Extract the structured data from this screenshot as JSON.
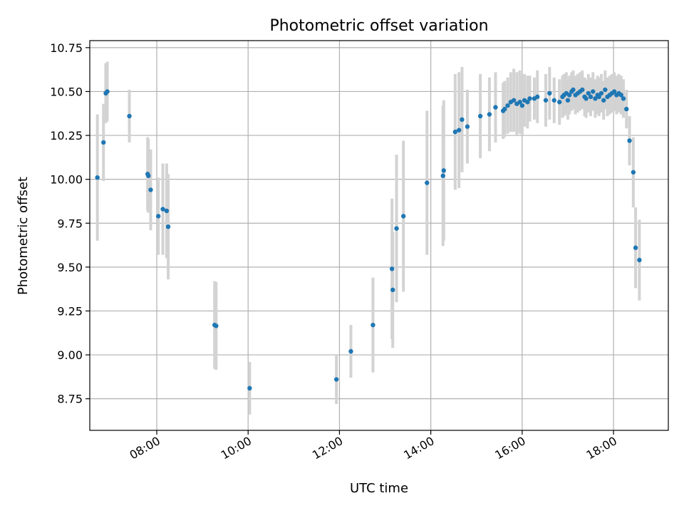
{
  "chart_data": {
    "type": "scatter",
    "title": "Photometric offset variation",
    "xlabel": "UTC time",
    "ylabel": "Photometric offset",
    "x_tick_labels": [
      "08:00",
      "10:00",
      "12:00",
      "14:00",
      "16:00",
      "18:00"
    ],
    "y_tick_labels": [
      "8.75",
      "9.00",
      "9.25",
      "9.50",
      "9.75",
      "10.00",
      "10.25",
      "10.50",
      "10.75"
    ],
    "xlim": [
      "06:32",
      "19:12"
    ],
    "ylim": [
      8.57,
      10.79
    ],
    "grid": true,
    "legend": "none",
    "errorbar_color": "#d3d3d3",
    "marker_color": "#1f77b4",
    "series": [
      {
        "x": [
          "06:42",
          "06:50",
          "06:53",
          "06:55",
          "07:24",
          "07:48",
          "07:49",
          "07:52",
          "08:02",
          "08:08",
          "08:13",
          "08:15",
          "09:16",
          "09:18",
          "10:02",
          "11:56",
          "12:15",
          "12:44",
          "13:09",
          "13:10",
          "13:15",
          "13:24",
          "13:55",
          "14:16",
          "14:17",
          "14:32",
          "14:37",
          "14:41",
          "14:48",
          "15:05",
          "15:17",
          "15:25",
          "15:35",
          "15:37",
          "15:41",
          "15:45",
          "15:49",
          "15:53",
          "15:57",
          "16:00",
          "16:03",
          "16:07",
          "16:10",
          "16:16",
          "16:20",
          "16:31",
          "16:36",
          "16:42",
          "16:49",
          "16:53",
          "16:55",
          "16:58",
          "17:00",
          "17:02",
          "17:05",
          "17:07",
          "17:10",
          "17:13",
          "17:16",
          "17:19",
          "17:22",
          "17:24",
          "17:27",
          "17:30",
          "17:33",
          "17:36",
          "17:39",
          "17:41",
          "17:44",
          "17:47",
          "17:49",
          "17:52",
          "17:55",
          "17:58",
          "18:01",
          "18:04",
          "18:07",
          "18:10",
          "18:13",
          "18:17",
          "18:21",
          "18:26",
          "18:29",
          "18:34"
        ],
        "y": [
          10.01,
          10.21,
          10.49,
          10.5,
          10.36,
          10.03,
          10.02,
          9.94,
          9.79,
          9.83,
          9.82,
          9.73,
          9.17,
          9.165,
          8.81,
          8.86,
          9.02,
          9.17,
          9.49,
          9.37,
          9.72,
          9.79,
          9.98,
          10.02,
          10.05,
          10.27,
          10.28,
          10.34,
          10.3,
          10.36,
          10.37,
          10.41,
          10.39,
          10.4,
          10.42,
          10.44,
          10.45,
          10.43,
          10.44,
          10.42,
          10.45,
          10.44,
          10.46,
          10.46,
          10.47,
          10.45,
          10.49,
          10.45,
          10.44,
          10.47,
          10.48,
          10.49,
          10.45,
          10.48,
          10.5,
          10.51,
          10.48,
          10.49,
          10.5,
          10.51,
          10.47,
          10.46,
          10.49,
          10.47,
          10.5,
          10.46,
          10.48,
          10.47,
          10.49,
          10.45,
          10.51,
          10.47,
          10.48,
          10.49,
          10.5,
          10.48,
          10.49,
          10.48,
          10.46,
          10.4,
          10.22,
          10.04,
          9.61,
          9.54
        ],
        "yerr": [
          0.36,
          0.22,
          0.17,
          0.17,
          0.15,
          0.21,
          0.21,
          0.23,
          0.22,
          0.26,
          0.27,
          0.3,
          0.25,
          0.25,
          0.15,
          0.14,
          0.15,
          0.27,
          0.4,
          0.33,
          0.42,
          0.43,
          0.41,
          0.4,
          0.4,
          0.33,
          0.33,
          0.3,
          0.21,
          0.24,
          0.21,
          0.2,
          0.16,
          0.16,
          0.16,
          0.17,
          0.18,
          0.18,
          0.18,
          0.17,
          0.15,
          0.15,
          0.13,
          0.12,
          0.15,
          0.15,
          0.15,
          0.13,
          0.13,
          0.12,
          0.12,
          0.12,
          0.11,
          0.11,
          0.11,
          0.11,
          0.11,
          0.11,
          0.11,
          0.11,
          0.11,
          0.11,
          0.11,
          0.11,
          0.11,
          0.11,
          0.11,
          0.11,
          0.11,
          0.11,
          0.11,
          0.11,
          0.11,
          0.11,
          0.11,
          0.11,
          0.11,
          0.11,
          0.11,
          0.11,
          0.14,
          0.2,
          0.23,
          0.23
        ]
      }
    ]
  }
}
